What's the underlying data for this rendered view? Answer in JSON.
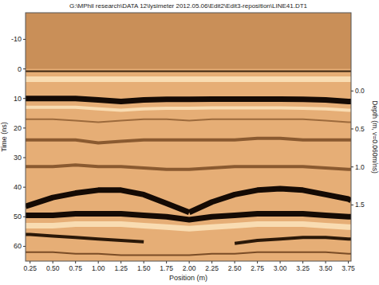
{
  "chart_data": {
    "type": "line",
    "title": "G:\\MPhil research\\DATA 12\\lysimeter 2012.05.06\\Edit2\\Edit3-reposition\\LINE41.DT1",
    "x_label": "Position (m)",
    "y_label": "Time (ns)",
    "y2_label": "Depth (m, v=0.060m/ns)",
    "x": [
      0.2,
      0.25,
      0.5,
      0.75,
      1.0,
      1.25,
      1.5,
      1.75,
      2.0,
      2.25,
      2.5,
      2.75,
      3.0,
      3.25,
      3.5,
      3.75,
      3.78
    ],
    "xlim": [
      0.2,
      3.78
    ],
    "xticks": [
      {
        "value": 0.25,
        "label": "0.25"
      },
      {
        "value": 0.5,
        "label": "0.50"
      },
      {
        "value": 0.75,
        "label": "0.75"
      },
      {
        "value": 1.0,
        "label": "1.00"
      },
      {
        "value": 1.25,
        "label": "1.25"
      },
      {
        "value": 1.5,
        "label": "1.50"
      },
      {
        "value": 1.75,
        "label": "1.75"
      },
      {
        "value": 2.0,
        "label": "2.00"
      },
      {
        "value": 2.25,
        "label": "2.25"
      },
      {
        "value": 2.5,
        "label": "2.50"
      },
      {
        "value": 2.75,
        "label": "2.75"
      },
      {
        "value": 3.0,
        "label": "3.00"
      },
      {
        "value": 3.25,
        "label": "3.25"
      },
      {
        "value": 3.5,
        "label": "3.50"
      },
      {
        "value": 3.75,
        "label": "3.75"
      }
    ],
    "ylim": [
      -19,
      65
    ],
    "yticks": [
      -10,
      0,
      10,
      20,
      30,
      40,
      50,
      60
    ],
    "y2lim": [
      -1.03,
      2.24
    ],
    "y2ticks": [
      {
        "value": 0,
        "label": "0.0"
      },
      0.5,
      {
        "value": 1,
        "label": "1.0"
      },
      1.5
    ],
    "grid": false,
    "series": [
      {
        "color": "#f9dcb2",
        "line_style": "thick",
        "values": [
          3.5,
          3.5,
          3.5,
          3.5,
          3.5,
          3.5,
          3.5,
          3.5,
          3.5,
          3.5,
          3.5,
          3.5,
          3.5,
          3.5,
          3.5,
          3.5,
          3.5
        ]
      },
      {
        "color": "#3a2410",
        "line_style": "thin",
        "values": [
          0.8,
          0.8,
          0.8,
          0.8,
          0.8,
          0.8,
          0.8,
          0.8,
          0.8,
          0.8,
          0.8,
          0.8,
          0.8,
          0.8,
          0.8,
          0.8,
          0.8
        ]
      },
      {
        "color": "#f9dcb2",
        "line_style": "medium",
        "values": [
          13,
          13,
          13,
          13,
          13.5,
          14,
          13.5,
          13.3,
          13.3,
          13.2,
          13.2,
          13.2,
          13.2,
          13.3,
          13.5,
          14,
          14
        ]
      },
      {
        "color": "#140a04",
        "line_style": "thick",
        "values": [
          10,
          10,
          10,
          10,
          10.5,
          11,
          10.5,
          10.3,
          10.3,
          10.2,
          10.2,
          10.2,
          10.2,
          10.3,
          10.5,
          11,
          11
        ]
      },
      {
        "color": "#9c6a3c",
        "line_style": "thin",
        "values": [
          17,
          17,
          17,
          17.5,
          18,
          17.5,
          17,
          17,
          17.5,
          17,
          17,
          17,
          17,
          17,
          17.5,
          18,
          18
        ]
      },
      {
        "color": "#8a5a30",
        "line_style": "medium",
        "values": [
          24,
          24,
          24,
          24,
          25,
          24.5,
          24,
          24,
          24,
          24,
          24,
          23.5,
          23.5,
          24,
          24,
          24,
          24
        ]
      },
      {
        "color": "#8a5a30",
        "line_style": "medium",
        "values": [
          33,
          33,
          33,
          32.5,
          33,
          33,
          33.5,
          34,
          34,
          33.5,
          33,
          33,
          33,
          33,
          33.5,
          34,
          34
        ]
      },
      {
        "color": "#f9dcb2",
        "line_style": "thick",
        "values": [
          53,
          53,
          53,
          52.5,
          52.5,
          52.5,
          53,
          53.5,
          54,
          53.5,
          53,
          52.5,
          52.5,
          52.5,
          53,
          53.5,
          53.5
        ]
      },
      {
        "color": "#140a04",
        "line_style": "thick",
        "values": [
          46.5,
          46,
          43.5,
          42,
          41,
          41,
          42.5,
          45.5,
          48.5,
          null,
          null,
          null,
          null,
          null,
          null,
          null,
          null
        ]
      },
      {
        "color": "#140a04",
        "line_style": "thick",
        "values": [
          null,
          null,
          null,
          null,
          null,
          null,
          null,
          null,
          48.5,
          45,
          42.5,
          41,
          40.5,
          41,
          42.5,
          44,
          44.5
        ]
      },
      {
        "color": "#140a04",
        "line_style": "thick",
        "values": [
          49.5,
          49.5,
          49.5,
          49,
          49,
          49,
          49.5,
          50,
          51,
          50,
          49.5,
          49,
          49,
          49,
          49.5,
          50,
          50
        ]
      },
      {
        "color": "#2a1808",
        "line_style": "medium",
        "values": [
          56,
          56,
          56.5,
          57,
          57.5,
          58,
          58.5,
          null,
          null,
          null,
          59,
          58,
          57.5,
          57,
          57,
          57.5,
          57.5
        ]
      },
      {
        "color": "#7a4c26",
        "line_style": "thin",
        "values": [
          62,
          62,
          62,
          62.5,
          62.5,
          63,
          63,
          63,
          63,
          62.5,
          62.5,
          62,
          62,
          62,
          62,
          62.5,
          62.5
        ]
      }
    ]
  }
}
